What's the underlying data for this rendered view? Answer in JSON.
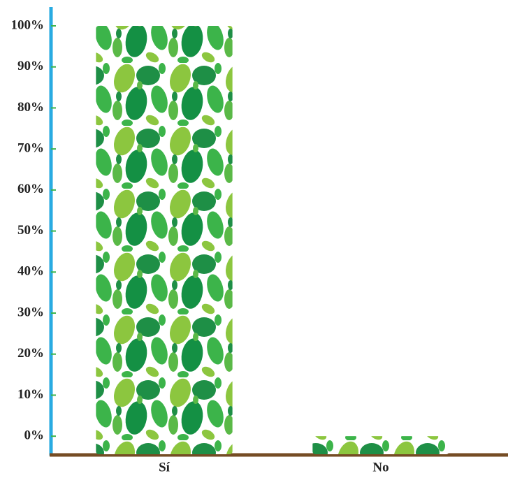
{
  "chart_data": {
    "type": "bar",
    "categories": [
      "Sí",
      "No"
    ],
    "values": [
      100,
      0
    ],
    "ylim": [
      -4.4,
      104.6
    ],
    "yticks": [
      {
        "value": 0,
        "label": "0%"
      },
      {
        "value": 10,
        "label": "10%"
      },
      {
        "value": 20,
        "label": "20%"
      },
      {
        "value": 30,
        "label": "30%"
      },
      {
        "value": 40,
        "label": "40%"
      },
      {
        "value": 50,
        "label": "50%"
      },
      {
        "value": 60,
        "label": "60%"
      },
      {
        "value": 70,
        "label": "70%"
      },
      {
        "value": 80,
        "label": "80%"
      },
      {
        "value": 90,
        "label": "90%"
      },
      {
        "value": 100,
        "label": "100%"
      }
    ],
    "grid": false
  }
}
